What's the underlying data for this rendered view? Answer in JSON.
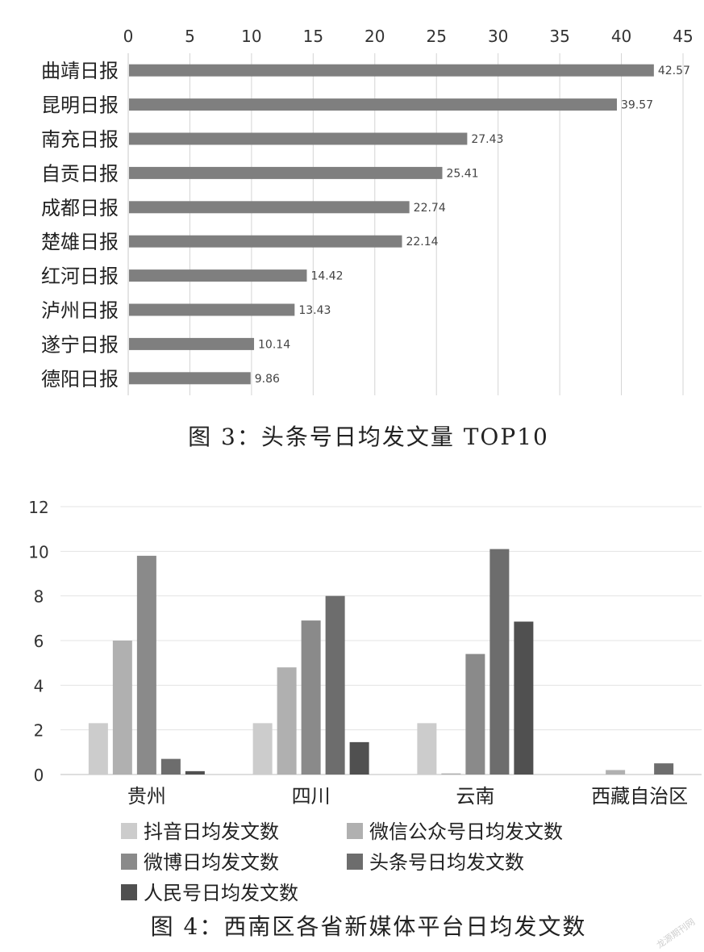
{
  "chart_data": [
    {
      "type": "bar",
      "orientation": "horizontal",
      "categories": [
        "曲靖日报",
        "昆明日报",
        "南充日报",
        "自贡日报",
        "成都日报",
        "楚雄日报",
        "红河日报",
        "泸州日报",
        "遂宁日报",
        "德阳日报"
      ],
      "values": [
        42.57,
        39.57,
        27.43,
        25.41,
        22.74,
        22.14,
        14.42,
        13.43,
        10.14,
        9.86
      ],
      "value_labels": [
        "42.57",
        "39.57",
        "27.43",
        "25.41",
        "22.74",
        "22.14",
        "14.42",
        "13.43",
        "10.14",
        "9.86"
      ],
      "xlim": [
        0,
        45
      ],
      "x_ticks": [
        "0",
        "5",
        "10",
        "15",
        "20",
        "25",
        "30",
        "35",
        "40",
        "45"
      ],
      "x_axis_position": "top",
      "grid": true,
      "bar_color": "#7f7f7f",
      "caption": "图 3：头条号日均发文量 TOP10"
    },
    {
      "type": "bar",
      "orientation": "vertical",
      "categories": [
        "贵州",
        "四川",
        "云南",
        "西藏自治区"
      ],
      "series": [
        {
          "name": "抖音日均发文数",
          "values": [
            2.3,
            2.3,
            2.3,
            0
          ],
          "color": "#cccccc"
        },
        {
          "name": "微信公众号日均发文数",
          "values": [
            6.0,
            4.8,
            0.05,
            0.2
          ],
          "color": "#b0b0b0"
        },
        {
          "name": "微博日均发文数",
          "values": [
            9.8,
            6.9,
            5.4,
            0
          ],
          "color": "#8a8a8a"
        },
        {
          "name": "头条号日均发文数",
          "values": [
            0.7,
            8.0,
            10.1,
            0.5
          ],
          "color": "#6d6d6d"
        },
        {
          "name": "人民号日均发文数",
          "values": [
            0.15,
            1.45,
            6.85,
            0
          ],
          "color": "#505050"
        }
      ],
      "ylim": [
        0,
        12
      ],
      "y_ticks": [
        "0",
        "2",
        "4",
        "6",
        "8",
        "10",
        "12"
      ],
      "grid": true,
      "legend_position": "bottom",
      "caption": "图 4：西南区各省新媒体平台日均发文数"
    }
  ],
  "watermark": "龙源期刊网"
}
